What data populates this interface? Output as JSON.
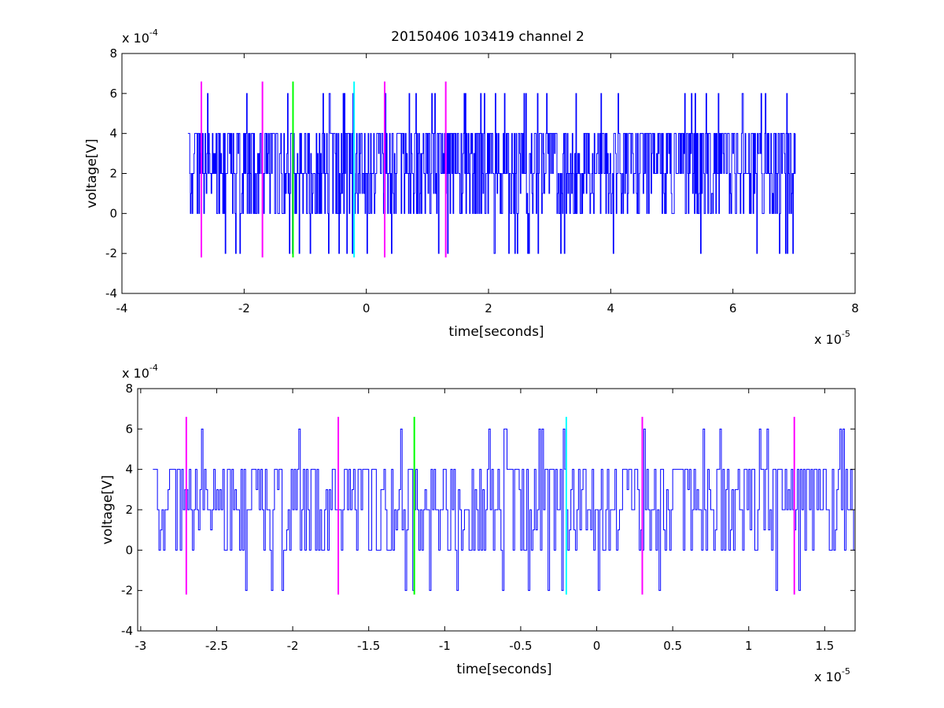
{
  "figure": {
    "title": "20150406 103419 channel 2"
  },
  "colors": {
    "signal": "#0000ff",
    "magenta": "#ff00ff",
    "green": "#00ff00",
    "cyan": "#00ffff",
    "axis": "#000000",
    "background": "#ffffff"
  },
  "chart_data": [
    {
      "type": "line",
      "title": "20150406 103419 channel 2",
      "xlabel": "time[seconds]",
      "ylabel": "voltage[V]",
      "xlim": [
        -4e-05,
        8e-05
      ],
      "ylim": [
        -0.0004,
        0.0008
      ],
      "xticks": [
        -4e-05,
        -2e-05,
        0,
        2e-05,
        4e-05,
        6e-05,
        8e-05
      ],
      "xtick_labels": [
        "-4",
        "-2",
        "0",
        "2",
        "4",
        "6",
        "8"
      ],
      "yticks": [
        -0.0004,
        -0.0002,
        0,
        0.0002,
        0.0004,
        0.0006,
        0.0008
      ],
      "ytick_labels": [
        "-4",
        "-2",
        "0",
        "2",
        "4",
        "6",
        "8"
      ],
      "x_multiplier": {
        "base": "x 10",
        "exponent": "-5"
      },
      "y_multiplier": {
        "base": "x 10",
        "exponent": "-4"
      },
      "grid": false,
      "series": [
        {
          "signal_x_range": [
            -2.92e-05,
            7.02e-05
          ],
          "signal_step": 1e-07,
          "signal_seed": 11,
          "values_levels": [
            -0.0002,
            0,
            0.0001,
            0.0002,
            0.0003,
            0.0004,
            0.0006
          ]
        }
      ],
      "markers": [
        {
          "x": -2.7e-05,
          "color": "#ff00ff",
          "y_range": [
            -0.00022,
            0.00066
          ]
        },
        {
          "x": -1.7e-05,
          "color": "#ff00ff",
          "y_range": [
            -0.00022,
            0.00066
          ]
        },
        {
          "x": -1.2e-05,
          "color": "#00ff00",
          "y_range": [
            -0.00022,
            0.00066
          ]
        },
        {
          "x": -2e-06,
          "color": "#00ffff",
          "y_range": [
            -0.00022,
            0.00066
          ]
        },
        {
          "x": 3e-06,
          "color": "#ff00ff",
          "y_range": [
            -0.00022,
            0.00066
          ]
        },
        {
          "x": 1.3e-05,
          "color": "#ff00ff",
          "y_range": [
            -0.00022,
            0.00066
          ]
        }
      ]
    },
    {
      "type": "line",
      "title": "",
      "xlabel": "time[seconds]",
      "ylabel": "voltage[V]",
      "xlim": [
        -3.02e-05,
        1.7e-05
      ],
      "ylim": [
        -0.0004,
        0.0008
      ],
      "xticks": [
        -3e-05,
        -2.5e-05,
        -2e-05,
        -1.5e-05,
        -1e-05,
        -5e-06,
        0,
        5e-06,
        1e-05,
        1.5e-05
      ],
      "xtick_labels": [
        "-3",
        "-2.5",
        "-2",
        "-1.5",
        "-1",
        "-0.5",
        "0",
        "0.5",
        "1",
        "1.5"
      ],
      "yticks": [
        -0.0004,
        -0.0002,
        0,
        0.0002,
        0.0004,
        0.0006,
        0.0008
      ],
      "ytick_labels": [
        "-4",
        "-2",
        "0",
        "2",
        "4",
        "6",
        "8"
      ],
      "x_multiplier": {
        "base": "x 10",
        "exponent": "-5"
      },
      "y_multiplier": {
        "base": "x 10",
        "exponent": "-4"
      },
      "grid": false,
      "series": [
        {
          "signal_x_range": [
            -2.92e-05,
            1.7e-05
          ],
          "signal_step": 1e-07,
          "signal_seed": 11,
          "values_levels": [
            -0.0002,
            0,
            0.0001,
            0.0002,
            0.0003,
            0.0004,
            0.0006
          ]
        }
      ],
      "markers": [
        {
          "x": -2.7e-05,
          "color": "#ff00ff",
          "y_range": [
            -0.00022,
            0.00066
          ]
        },
        {
          "x": -1.7e-05,
          "color": "#ff00ff",
          "y_range": [
            -0.00022,
            0.00066
          ]
        },
        {
          "x": -1.2e-05,
          "color": "#00ff00",
          "y_range": [
            -0.00022,
            0.00066
          ]
        },
        {
          "x": -2e-06,
          "color": "#00ffff",
          "y_range": [
            -0.00022,
            0.00066
          ]
        },
        {
          "x": 3e-06,
          "color": "#ff00ff",
          "y_range": [
            -0.00022,
            0.00066
          ]
        },
        {
          "x": 1.3e-05,
          "color": "#ff00ff",
          "y_range": [
            -0.00022,
            0.00066
          ]
        }
      ]
    }
  ]
}
